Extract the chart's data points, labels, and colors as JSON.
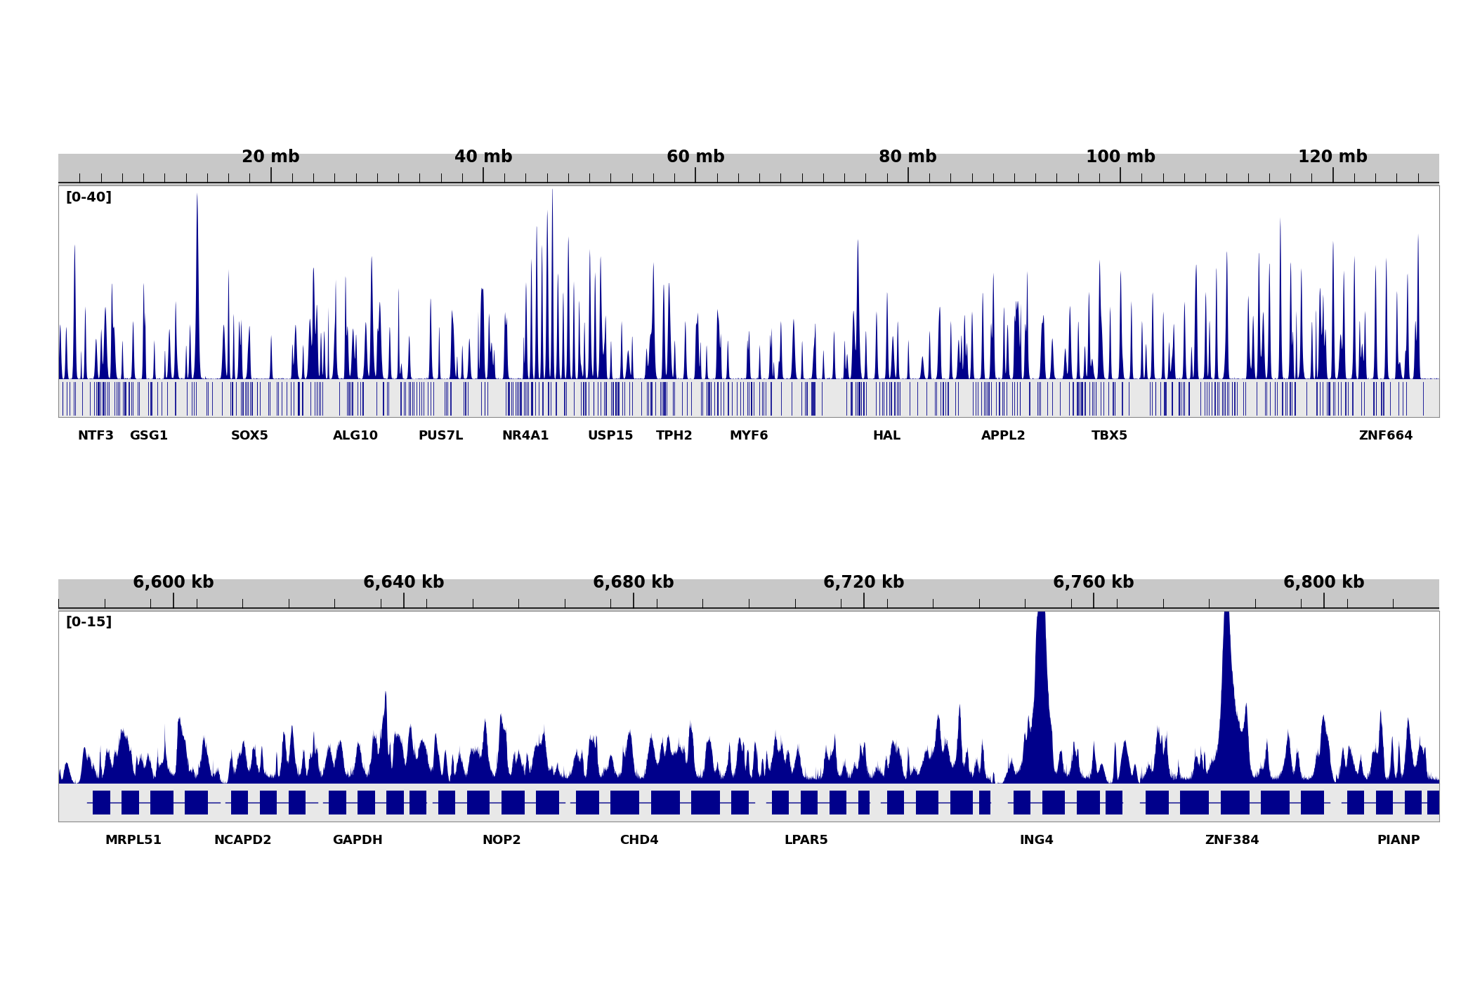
{
  "background_color": "#ffffff",
  "bar_color": "#00008B",
  "ruler_bg_color": "#c8c8c8",
  "signal_bg_color": "#ffffff",
  "gene_track_bg_color": "#e8e8e8",
  "panel1": {
    "range_label": "[0-40]",
    "xmin": 0,
    "xmax": 130,
    "xticks": [
      20,
      40,
      60,
      80,
      100,
      120
    ],
    "xtick_labels": [
      "20 mb",
      "40 mb",
      "60 mb",
      "80 mb",
      "100 mb",
      "120 mb"
    ],
    "ylim": [
      0,
      40
    ],
    "gene_labels": [
      "NTF3",
      "GSG1",
      "SOX5",
      "ALG10",
      "PUS7L",
      "NR4A1",
      "USP15",
      "TPH2",
      "MYF6",
      "HAL",
      "APPL2",
      "TBX5",
      "ZNF664"
    ],
    "gene_positions": [
      3.5,
      8.5,
      18,
      28,
      36,
      44,
      52,
      58,
      65,
      78,
      89,
      99,
      125
    ]
  },
  "panel2": {
    "range_label": "[0-15]",
    "xmin": 6580,
    "xmax": 6820,
    "xticks": [
      6600,
      6640,
      6680,
      6720,
      6760,
      6800
    ],
    "xtick_labels": [
      "6,600 kb",
      "6,640 kb",
      "6,680 kb",
      "6,720 kb",
      "6,760 kb",
      "6,800 kb"
    ],
    "ylim": [
      0,
      15
    ],
    "gene_labels": [
      "MRPL51",
      "NCAPD2",
      "GAPDH",
      "NOP2",
      "CHD4",
      "LPAR5",
      "ING4",
      "ZNF384",
      "PIANP"
    ],
    "gene_positions": [
      6593,
      6612,
      6632,
      6657,
      6681,
      6710,
      6750,
      6784,
      6813
    ]
  }
}
